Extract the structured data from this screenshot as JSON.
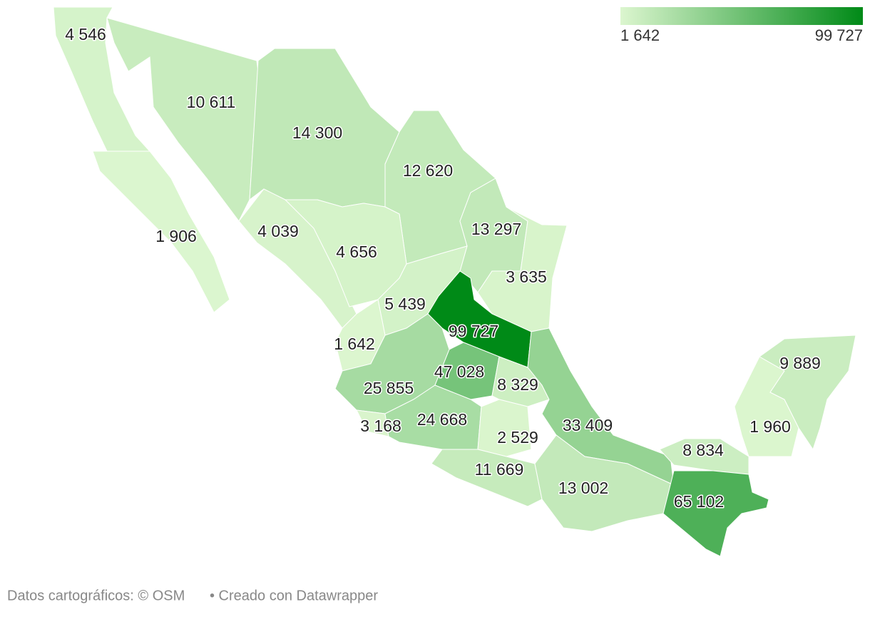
{
  "legend": {
    "min": 1642,
    "max": 99727,
    "min_label": "1 642",
    "max_label": "99 727",
    "colors": [
      "#dcf6cf",
      "#008a17"
    ]
  },
  "regions": [
    {
      "value": 4546,
      "label": "4 546"
    },
    {
      "value": 1906,
      "label": "1 906"
    },
    {
      "value": 10611,
      "label": "10 611"
    },
    {
      "value": 14300,
      "label": "14 300"
    },
    {
      "value": 12620,
      "label": "12 620"
    },
    {
      "value": 13297,
      "label": "13 297"
    },
    {
      "value": 3635,
      "label": "3 635"
    },
    {
      "value": 4039,
      "label": "4 039"
    },
    {
      "value": 4656,
      "label": "4 656"
    },
    {
      "value": 5439,
      "label": "5 439"
    },
    {
      "value": 99727,
      "label": "99 727"
    },
    {
      "value": 1642,
      "label": "1 642"
    },
    {
      "value": 25855,
      "label": "25 855"
    },
    {
      "value": 3168,
      "label": "3 168"
    },
    {
      "value": 47028,
      "label": "47 028"
    },
    {
      "value": 8329,
      "label": "8 329"
    },
    {
      "value": 24668,
      "label": "24 668"
    },
    {
      "value": 2529,
      "label": "2 529"
    },
    {
      "value": 33409,
      "label": "33 409"
    },
    {
      "value": 11669,
      "label": "11 669"
    },
    {
      "value": 13002,
      "label": "13 002"
    },
    {
      "value": 8834,
      "label": "8 834"
    },
    {
      "value": 65102,
      "label": "65 102"
    },
    {
      "value": 1960,
      "label": "1 960"
    },
    {
      "value": 9889,
      "label": "9 889"
    }
  ],
  "footer": {
    "source": "Datos cartográficos: © OSM",
    "credit": "• Creado con Datawrapper"
  }
}
